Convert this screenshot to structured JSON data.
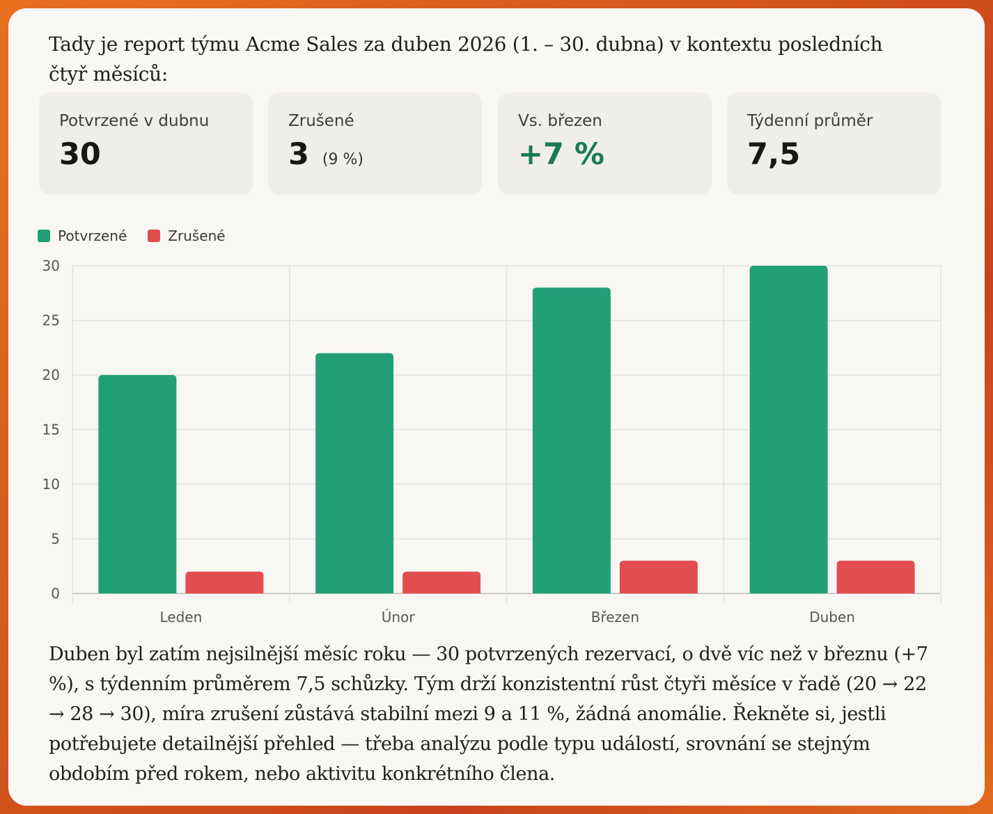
{
  "intro_text": "Tady je report týmu Acme Sales za duben 2026 (1. – 30. dubna) v kontextu posledních čtyř měsíců:",
  "kpis": [
    {
      "label": "Potvrzené v dubnu",
      "value": "30",
      "sub": ""
    },
    {
      "label": "Zrušené",
      "value": "3",
      "sub": "(9 %)"
    },
    {
      "label": "Vs. březen",
      "value": "+7 %",
      "sub": ""
    },
    {
      "label": "Týdenní průměr",
      "value": "7,5",
      "sub": ""
    }
  ],
  "colors": {
    "confirmed": "#21a078",
    "cancelled": "#e24d4f",
    "positive_text": "#1b7a56"
  },
  "chart_data": {
    "type": "bar",
    "categories": [
      "Leden",
      "Únor",
      "Březen",
      "Duben"
    ],
    "series": [
      {
        "name": "Potvrzené",
        "values": [
          20,
          22,
          28,
          30
        ],
        "color": "#21a078"
      },
      {
        "name": "Zrušené",
        "values": [
          2,
          2,
          3,
          3
        ],
        "color": "#e24d4f"
      }
    ],
    "yticks": [
      0,
      5,
      10,
      15,
      20,
      25,
      30
    ],
    "ylim": [
      0,
      30
    ],
    "grid": true,
    "legend": "top-left",
    "title": "",
    "xlabel": "",
    "ylabel": ""
  },
  "summary_text": "Duben byl zatím nejsilnější měsíc roku — 30 potvrzených rezervací, o dvě víc než v březnu (+7 %), s týdenním průměrem 7,5 schůzky. Tým drží konzistentní růst čtyři měsíce v řadě (20 → 22 → 28 → 30), míra zrušení zůstává stabilní mezi 9 a 11 %, žádná anomálie. Řekněte si, jestli potřebujete detailnější přehled — třeba analýzu podle typu událostí, srovnání se stejným obdobím před rokem, nebo aktivitu konkrétního člena."
}
